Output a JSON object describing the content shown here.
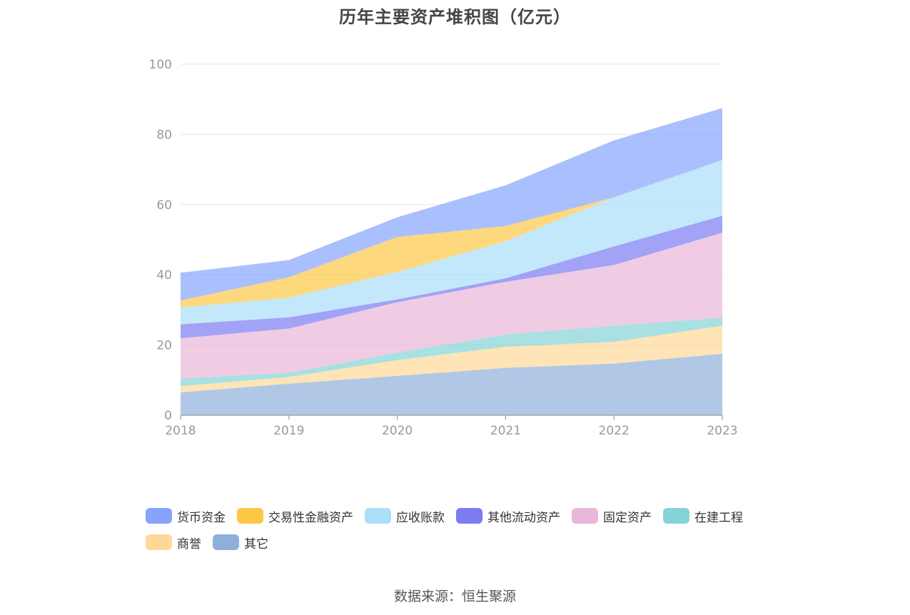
{
  "chart_data": {
    "type": "area",
    "stacked": true,
    "title": "历年主要资产堆积图（亿元）",
    "xlabel": "",
    "ylabel": "",
    "categories": [
      "2018",
      "2019",
      "2020",
      "2021",
      "2022",
      "2023"
    ],
    "ylim": [
      0,
      100
    ],
    "yticks": [
      0,
      20,
      40,
      60,
      80,
      100
    ],
    "grid": true,
    "legend_position": "bottom",
    "series": [
      {
        "name": "其它",
        "color": "#8fafdb",
        "values": [
          6.5,
          9.0,
          11.2,
          13.5,
          14.7,
          17.5
        ]
      },
      {
        "name": "商誉",
        "color": "#fdd899",
        "values": [
          1.8,
          1.9,
          4.5,
          6.0,
          6.2,
          8.0
        ]
      },
      {
        "name": "在建工程",
        "color": "#84d3d6",
        "values": [
          2.2,
          1.2,
          2.1,
          3.5,
          4.6,
          2.3
        ]
      },
      {
        "name": "固定资产",
        "color": "#e8b7d9",
        "values": [
          11.4,
          12.6,
          14.4,
          15.0,
          17.3,
          24.2
        ]
      },
      {
        "name": "其他流动资产",
        "color": "#7b7bf2",
        "values": [
          4.0,
          3.2,
          0.8,
          1.0,
          5.3,
          4.8
        ]
      },
      {
        "name": "应收账款",
        "color": "#aadef9",
        "values": [
          4.8,
          5.6,
          7.8,
          10.6,
          14.0,
          15.9
        ]
      },
      {
        "name": "交易性金融资产",
        "color": "#fcc844",
        "values": [
          2.0,
          5.8,
          10.0,
          4.3,
          0.0,
          0.0
        ]
      },
      {
        "name": "货币资金",
        "color": "#86a4fc",
        "values": [
          7.9,
          4.9,
          5.6,
          11.6,
          16.2,
          14.8
        ]
      }
    ],
    "legend_order": [
      "货币资金",
      "交易性金融资产",
      "应收账款",
      "其他流动资产",
      "固定资产",
      "在建工程",
      "商誉",
      "其它"
    ]
  },
  "source_text": "数据来源：恒生聚源"
}
